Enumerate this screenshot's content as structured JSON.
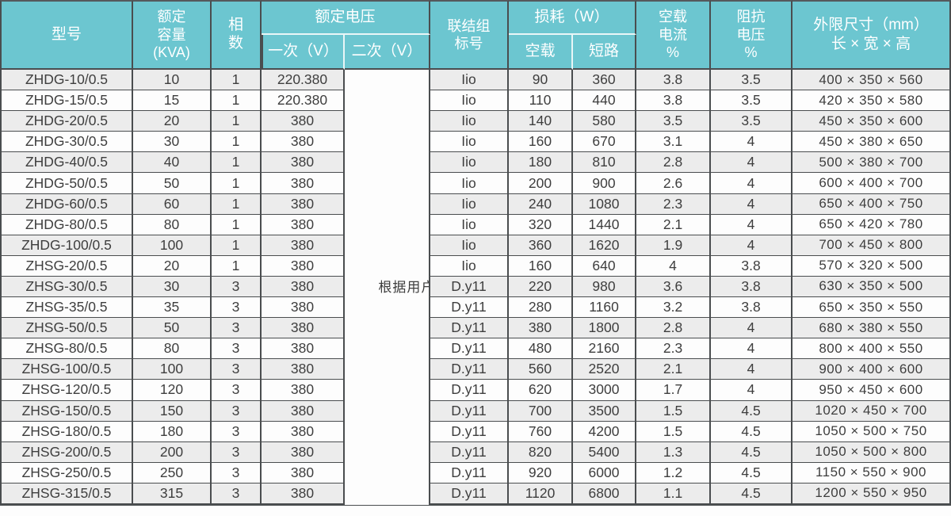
{
  "colors": {
    "header_bg": "#6cc6d0",
    "header_text": "#ffffff",
    "grid_line": "#4a4d4f",
    "header_sub_divider": "#e9f6f7",
    "row_stripe": "#ececec",
    "row_plain": "#fdfdfd",
    "body_text": "#3e3e3e"
  },
  "table": {
    "header": {
      "model": "型号",
      "capacity_lines": [
        "额定",
        "容量",
        "(KVA)"
      ],
      "phases": "相数",
      "rated_voltage_group": "额定电压",
      "primary": "一次（V）",
      "secondary": "二次（V）",
      "connection_lines": [
        "联结组",
        "标号"
      ],
      "loss_group": "损耗（W）",
      "no_load": "空载",
      "short_circuit": "短路",
      "no_load_current_lines": [
        "空载",
        "电流",
        "%"
      ],
      "impedance_lines": [
        "阻抗",
        "电压",
        "%"
      ],
      "dimensions_lines": [
        "外限尺寸（mm）",
        "长 × 宽 × 高"
      ]
    },
    "secondary_note": "根据用户要求任意选择",
    "rows": [
      [
        "ZHDG-10/0.5",
        "10",
        "1",
        "220.380",
        "Iio",
        "90",
        "360",
        "3.8",
        "3.5",
        "400 × 350 × 560"
      ],
      [
        "ZHDG-15/0.5",
        "15",
        "1",
        "220.380",
        "Iio",
        "110",
        "440",
        "3.8",
        "3.5",
        "420 × 350 × 580"
      ],
      [
        "ZHDG-20/0.5",
        "20",
        "1",
        "380",
        "Iio",
        "140",
        "580",
        "3.5",
        "3.5",
        "450 × 350 × 600"
      ],
      [
        "ZHDG-30/0.5",
        "30",
        "1",
        "380",
        "Iio",
        "160",
        "670",
        "3.1",
        "4",
        "450 × 380 × 650"
      ],
      [
        "ZHDG-40/0.5",
        "40",
        "1",
        "380",
        "Iio",
        "180",
        "810",
        "2.8",
        "4",
        "500 × 380 × 700"
      ],
      [
        "ZHDG-50/0.5",
        "50",
        "1",
        "380",
        "Iio",
        "200",
        "900",
        "2.6",
        "4",
        "600 × 400 × 700"
      ],
      [
        "ZHDG-60/0.5",
        "60",
        "1",
        "380",
        "Iio",
        "240",
        "1080",
        "2.3",
        "4",
        "650 × 400 × 750"
      ],
      [
        "ZHDG-80/0.5",
        "80",
        "1",
        "380",
        "Iio",
        "320",
        "1440",
        "2.1",
        "4",
        "650 × 420 × 780"
      ],
      [
        "ZHDG-100/0.5",
        "100",
        "1",
        "380",
        "Iio",
        "360",
        "1620",
        "1.9",
        "4",
        "700 × 450 × 800"
      ],
      [
        "ZHSG-20/0.5",
        "20",
        "1",
        "380",
        "Iio",
        "160",
        "640",
        "4",
        "3.8",
        "570 × 320 × 500"
      ],
      [
        "ZHSG-30/0.5",
        "30",
        "3",
        "380",
        "D.y11",
        "220",
        "980",
        "3.6",
        "3.8",
        "630 × 350 × 500"
      ],
      [
        "ZHSG-35/0.5",
        "35",
        "3",
        "380",
        "D.y11",
        "280",
        "1160",
        "3.2",
        "3.8",
        "650 × 350 × 550"
      ],
      [
        "ZHSG-50/0.5",
        "50",
        "3",
        "380",
        "D.y11",
        "380",
        "1800",
        "2.8",
        "4",
        "680 × 380 × 550"
      ],
      [
        "ZHSG-80/0.5",
        "80",
        "3",
        "380",
        "D.y11",
        "480",
        "2160",
        "2.3",
        "4",
        "800 × 400 × 550"
      ],
      [
        "ZHSG-100/0.5",
        "100",
        "3",
        "380",
        "D.y11",
        "560",
        "2520",
        "2.1",
        "4",
        "900 × 400 × 600"
      ],
      [
        "ZHSG-120/0.5",
        "120",
        "3",
        "380",
        "D.y11",
        "620",
        "3000",
        "1.7",
        "4",
        "950 × 450 × 600"
      ],
      [
        "ZHSG-150/0.5",
        "150",
        "3",
        "380",
        "D.y11",
        "700",
        "3500",
        "1.5",
        "4.5",
        "1020 × 450 × 700"
      ],
      [
        "ZHSG-180/0.5",
        "180",
        "3",
        "380",
        "D.y11",
        "760",
        "4200",
        "1.5",
        "4.5",
        "1050 × 500 × 750"
      ],
      [
        "ZHSG-200/0.5",
        "200",
        "3",
        "380",
        "D.y11",
        "820",
        "5400",
        "1.3",
        "4.5",
        "1050 × 500 × 800"
      ],
      [
        "ZHSG-250/0.5",
        "250",
        "3",
        "380",
        "D.y11",
        "920",
        "6000",
        "1.2",
        "4.5",
        "1150 × 550 × 900"
      ],
      [
        "ZHSG-315/0.5",
        "315",
        "3",
        "380",
        "D.y11",
        "1120",
        "6800",
        "1.1",
        "4.5",
        "1200 × 550 × 950"
      ]
    ]
  }
}
